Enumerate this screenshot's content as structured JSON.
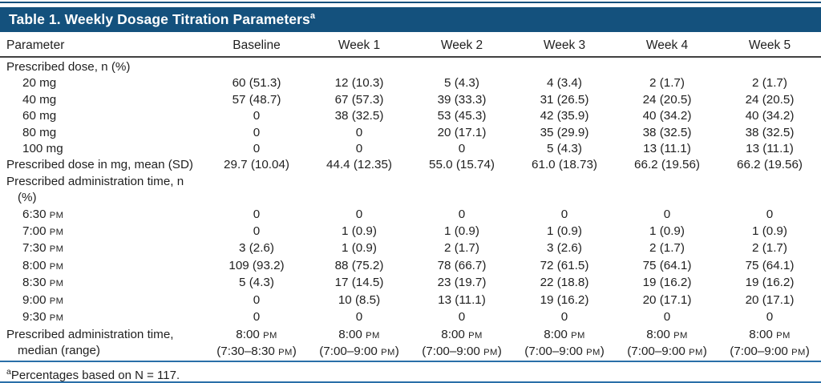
{
  "header": {
    "title": "Table 1. Weekly Dosage Titration Parameters",
    "title_sup": "a"
  },
  "table": {
    "columns": [
      "Parameter",
      "Baseline",
      "Week 1",
      "Week 2",
      "Week 3",
      "Week 4",
      "Week 5"
    ],
    "rows": [
      {
        "label": "Prescribed dose, n (%)",
        "indent": 0,
        "cells": [
          "",
          "",
          "",
          "",
          "",
          ""
        ]
      },
      {
        "label": "20 mg",
        "indent": 1,
        "cells": [
          "60 (51.3)",
          "12 (10.3)",
          "5 (4.3)",
          "4 (3.4)",
          "2 (1.7)",
          "2 (1.7)"
        ]
      },
      {
        "label": "40 mg",
        "indent": 1,
        "cells": [
          "57 (48.7)",
          "67 (57.3)",
          "39 (33.3)",
          "31 (26.5)",
          "24 (20.5)",
          "24 (20.5)"
        ]
      },
      {
        "label": "60 mg",
        "indent": 1,
        "cells": [
          "0",
          "38 (32.5)",
          "53 (45.3)",
          "42 (35.9)",
          "40 (34.2)",
          "40 (34.2)"
        ]
      },
      {
        "label": "80 mg",
        "indent": 1,
        "cells": [
          "0",
          "0",
          "20 (17.1)",
          "35 (29.9)",
          "38 (32.5)",
          "38 (32.5)"
        ]
      },
      {
        "label": "100 mg",
        "indent": 1,
        "cells": [
          "0",
          "0",
          "0",
          "5 (4.3)",
          "13 (11.1)",
          "13 (11.1)"
        ]
      },
      {
        "label": "Prescribed dose in mg, mean (SD)",
        "indent": 0,
        "cells": [
          "29.7 (10.04)",
          "44.4 (12.35)",
          "55.0 (15.74)",
          "61.0 (18.73)",
          "66.2 (19.56)",
          "66.2 (19.56)"
        ]
      },
      {
        "label": "Prescribed administration time, n (%)",
        "indent": 0,
        "cells": [
          "",
          "",
          "",
          "",
          "",
          ""
        ]
      },
      {
        "label": "6:30 PM",
        "indent": 1,
        "cells": [
          "0",
          "0",
          "0",
          "0",
          "0",
          "0"
        ]
      },
      {
        "label": "7:00 PM",
        "indent": 1,
        "cells": [
          "0",
          "1 (0.9)",
          "1 (0.9)",
          "1 (0.9)",
          "1 (0.9)",
          "1 (0.9)"
        ]
      },
      {
        "label": "7:30 PM",
        "indent": 1,
        "cells": [
          "3 (2.6)",
          "1 (0.9)",
          "2 (1.7)",
          "3 (2.6)",
          "2 (1.7)",
          "2 (1.7)"
        ]
      },
      {
        "label": "8:00 PM",
        "indent": 1,
        "cells": [
          "109 (93.2)",
          "88 (75.2)",
          "78 (66.7)",
          "72 (61.5)",
          "75 (64.1)",
          "75 (64.1)"
        ]
      },
      {
        "label": "8:30 PM",
        "indent": 1,
        "cells": [
          "5 (4.3)",
          "17 (14.5)",
          "23 (19.7)",
          "22 (18.8)",
          "19 (16.2)",
          "19 (16.2)"
        ]
      },
      {
        "label": "9:00 PM",
        "indent": 1,
        "cells": [
          "0",
          "10 (8.5)",
          "13 (11.1)",
          "19 (16.2)",
          "20 (17.1)",
          "20 (17.1)"
        ]
      },
      {
        "label": "9:30 PM",
        "indent": 1,
        "cells": [
          "0",
          "0",
          "0",
          "0",
          "0",
          "0"
        ]
      },
      {
        "label": "Prescribed administration time,\nmedian (range)",
        "indent": 0,
        "cells": [
          "8:00 PM\n(7:30–8:30 PM)",
          "8:00 PM\n(7:00–9:00 PM)",
          "8:00 PM\n(7:00–9:00 PM)",
          "8:00 PM\n(7:00–9:00 PM)",
          "8:00 PM\n(7:00–9:00 PM)",
          "8:00 PM\n(7:00–9:00 PM)"
        ]
      }
    ]
  },
  "footnote": {
    "sup": "a",
    "text": "Percentages based on N = 117."
  },
  "colors": {
    "header_bar": "#14517D",
    "rule_blue": "#2A6FA8",
    "rule_dark": "#414141",
    "text": "#1F1F1F"
  }
}
